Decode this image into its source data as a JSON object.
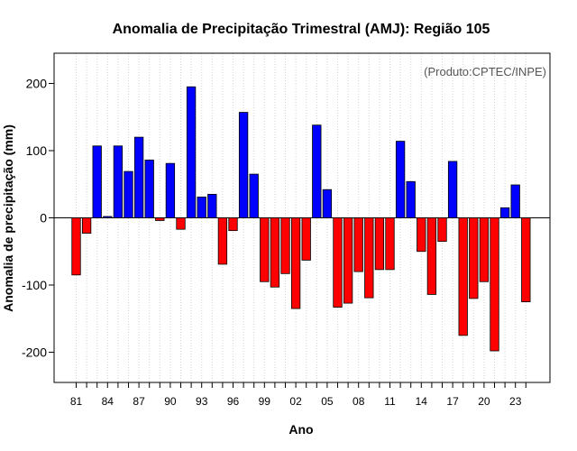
{
  "chart_data": {
    "type": "bar",
    "title": "Anomalia de Precipitação Trimestral (AMJ): Região 105",
    "xlabel": "Ano",
    "ylabel": "Anomalia de precipitação (mm)",
    "credit": "(Produto:CPTEC/INPE)",
    "ylim": [
      -245,
      245
    ],
    "yticks": [
      -200,
      -100,
      0,
      100,
      200
    ],
    "xtick_labels": [
      "81",
      "84",
      "87",
      "90",
      "93",
      "96",
      "99",
      "02",
      "05",
      "08",
      "11",
      "14",
      "17",
      "20",
      "23"
    ],
    "colors": {
      "positive": "#0000ff",
      "negative": "#ff0000",
      "edge": "#000000",
      "grid": "#d3d3d3"
    },
    "series": [
      {
        "name": "AMJ",
        "years": [
          1981,
          1982,
          1983,
          1984,
          1985,
          1986,
          1987,
          1988,
          1989,
          1990,
          1991,
          1992,
          1993,
          1994,
          1995,
          1996,
          1997,
          1998,
          1999,
          2000,
          2001,
          2002,
          2003,
          2004,
          2005,
          2006,
          2007,
          2008,
          2009,
          2010,
          2011,
          2012,
          2013,
          2014,
          2015,
          2016,
          2017,
          2018,
          2019,
          2020,
          2021,
          2022,
          2023,
          2024
        ],
        "values": [
          -85,
          -23,
          107,
          2,
          107,
          69,
          120,
          86,
          -4,
          81,
          -17,
          195,
          31,
          35,
          -69,
          -19,
          157,
          65,
          -95,
          -103,
          -83,
          -135,
          -63,
          138,
          42,
          -133,
          -127,
          -80,
          -119,
          -77,
          -77,
          114,
          54,
          -50,
          -114,
          -35,
          84,
          -175,
          -120,
          -95,
          -198,
          15,
          49,
          -125
        ]
      }
    ]
  }
}
